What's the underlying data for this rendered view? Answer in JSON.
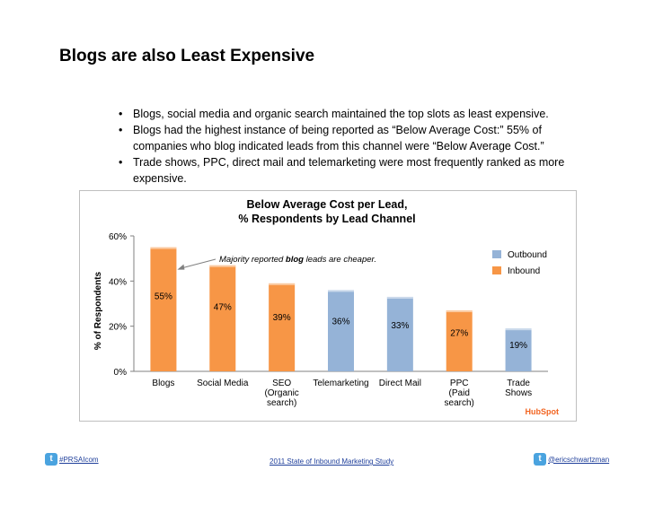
{
  "slide": {
    "title": "Blogs are also Least Expensive",
    "bullets": [
      "Blogs, social media and organic search maintained the top slots as least expensive.",
      "Blogs had the highest instance of being reported as “Below Average Cost:” 55% of companies who blog indicated leads from this channel were “Below Average Cost.”",
      "Trade shows, PPC, direct mail and telemarketing were most frequently ranked as more expensive."
    ],
    "bullet_glyph": "•"
  },
  "chart_data": {
    "type": "bar",
    "title": "Below Average Cost per Lead,",
    "subtitle": "% Respondents by Lead Channel",
    "xlabel": "",
    "ylabel": "% of Respondents",
    "ylim": [
      0,
      60
    ],
    "yticks": [
      "0%",
      "20%",
      "40%",
      "60%"
    ],
    "ytick_values": [
      0,
      20,
      40,
      60
    ],
    "categories": [
      [
        "Blogs"
      ],
      [
        "Social Media"
      ],
      [
        "SEO",
        "(Organic",
        "search)"
      ],
      [
        "Telemarketing"
      ],
      [
        "Direct Mail"
      ],
      [
        "PPC",
        "(Paid",
        "search)"
      ],
      [
        "Trade",
        "Shows"
      ]
    ],
    "values": [
      55,
      47,
      39,
      36,
      33,
      27,
      19
    ],
    "value_labels": [
      "55%",
      "47%",
      "39%",
      "36%",
      "33%",
      "27%",
      "19%"
    ],
    "series_of_bar": [
      "Inbound",
      "Inbound",
      "Inbound",
      "Outbound",
      "Outbound",
      "Inbound",
      "Outbound"
    ],
    "legend": [
      {
        "name": "Outbound",
        "color": "#95b3d7"
      },
      {
        "name": "Inbound",
        "color": "#f79646"
      }
    ],
    "legend_position": "top-right",
    "annotation": {
      "prefix": "Majority reported ",
      "bold": "blog",
      "suffix": " leads are cheaper."
    },
    "grid": false,
    "brand": "HubSpot"
  },
  "footer": {
    "left": "#PRSAIcom",
    "center": "2011 State of Inbound Marketing Study",
    "right": "@ericschwartzman",
    "twitter_glyph": "t"
  },
  "colors": {
    "inbound": "#f79646",
    "outbound": "#95b3d7",
    "brand_orange": "#f26522"
  }
}
